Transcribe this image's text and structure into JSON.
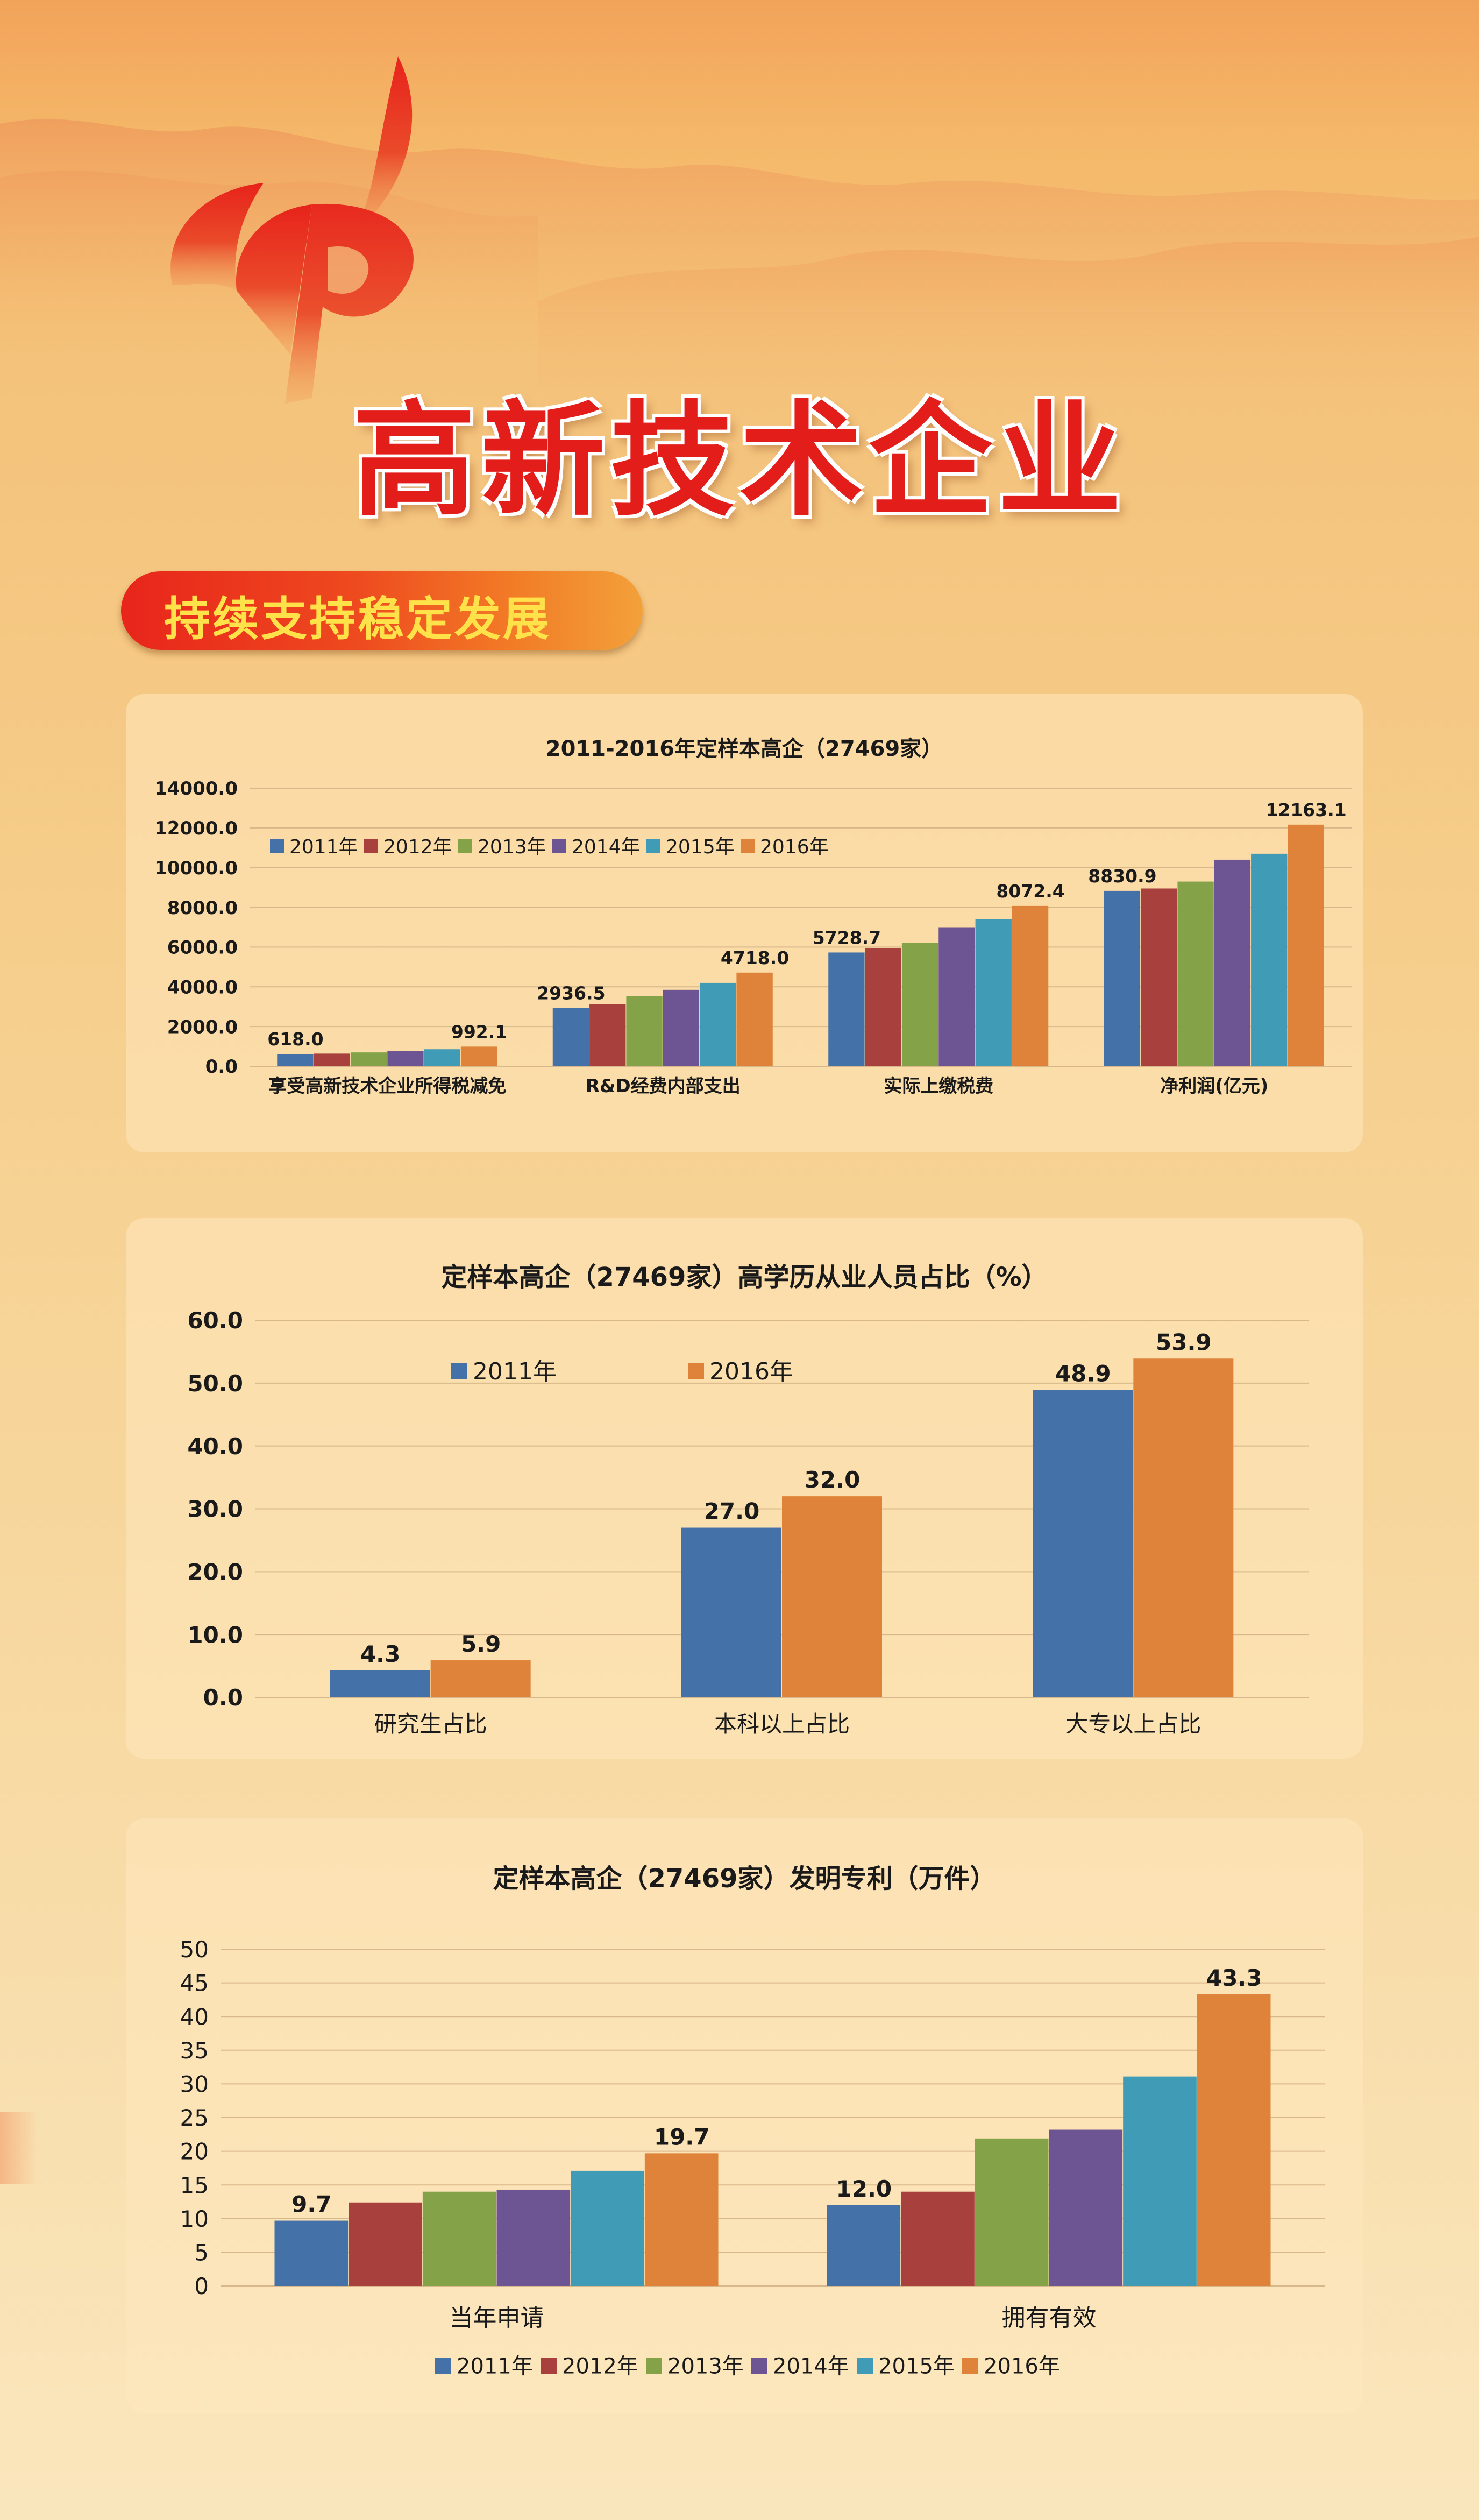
{
  "page": {
    "title": "高新技术企业",
    "section": "持续支持稳定发展"
  },
  "colors": {
    "2011": "#4472a8",
    "2012": "#a8403d",
    "2013": "#84a348",
    "2014": "#6c5592",
    "2015": "#3f9bb6",
    "2016": "#de8339",
    "title_red": "#e31d1a"
  },
  "chart_data": [
    {
      "type": "bar",
      "title": "2011-2016年定样本高企（27469家）",
      "categories": [
        "享受高新技术企业所得税减免",
        "R&D经费内部支出",
        "实际上缴税费",
        "净利润(亿元)"
      ],
      "ylim": [
        0,
        14000
      ],
      "yticks": [
        "0.0",
        "2000.0",
        "4000.0",
        "6000.0",
        "8000.0",
        "10000.0",
        "12000.0",
        "14000.0"
      ],
      "legend_position": "top-left",
      "grid": true,
      "series": [
        {
          "name": "2011年",
          "color": "#4472a8",
          "values": [
            618.0,
            2936.5,
            5728.7,
            8830.9
          ]
        },
        {
          "name": "2012年",
          "color": "#a8403d",
          "values": [
            640,
            3120,
            5950,
            8950
          ]
        },
        {
          "name": "2013年",
          "color": "#84a348",
          "values": [
            700,
            3530,
            6210,
            9300
          ]
        },
        {
          "name": "2014年",
          "color": "#6c5592",
          "values": [
            770,
            3850,
            7000,
            10400
          ]
        },
        {
          "name": "2015年",
          "color": "#3f9bb6",
          "values": [
            860,
            4200,
            7400,
            10700
          ]
        },
        {
          "name": "2016年",
          "color": "#de8339",
          "values": [
            992.1,
            4718.0,
            8072.4,
            12163.1
          ]
        }
      ],
      "data_labels": [
        {
          "series": 0,
          "category": 0,
          "text": "618.0"
        },
        {
          "series": 5,
          "category": 0,
          "text": "992.1"
        },
        {
          "series": 0,
          "category": 1,
          "text": "2936.5"
        },
        {
          "series": 5,
          "category": 1,
          "text": "4718.0"
        },
        {
          "series": 0,
          "category": 2,
          "text": "5728.7"
        },
        {
          "series": 5,
          "category": 2,
          "text": "8072.4"
        },
        {
          "series": 0,
          "category": 3,
          "text": "8830.9"
        },
        {
          "series": 5,
          "category": 3,
          "text": "12163.1"
        }
      ]
    },
    {
      "type": "bar",
      "title": "定样本高企（27469家）高学历从业人员占比（%）",
      "categories": [
        "研究生占比",
        "本科以上占比",
        "大专以上占比"
      ],
      "ylim": [
        0,
        60
      ],
      "yticks": [
        "0.0",
        "10.0",
        "20.0",
        "30.0",
        "40.0",
        "50.0",
        "60.0"
      ],
      "legend_position": "top",
      "grid": true,
      "series": [
        {
          "name": "2011年",
          "color": "#4472a8",
          "values": [
            4.3,
            27.0,
            48.9
          ]
        },
        {
          "name": "2016年",
          "color": "#de8339",
          "values": [
            5.9,
            32.0,
            53.9
          ]
        }
      ],
      "data_labels": [
        {
          "series": 0,
          "category": 0,
          "text": "4.3"
        },
        {
          "series": 1,
          "category": 0,
          "text": "5.9"
        },
        {
          "series": 0,
          "category": 1,
          "text": "27.0"
        },
        {
          "series": 1,
          "category": 1,
          "text": "32.0"
        },
        {
          "series": 0,
          "category": 2,
          "text": "48.9"
        },
        {
          "series": 1,
          "category": 2,
          "text": "53.9"
        }
      ]
    },
    {
      "type": "bar",
      "title": "定样本高企（27469家）发明专利（万件）",
      "categories": [
        "当年申请",
        "拥有有效"
      ],
      "ylim": [
        0,
        50
      ],
      "yticks": [
        "0",
        "5",
        "10",
        "15",
        "20",
        "25",
        "30",
        "35",
        "40",
        "45",
        "50"
      ],
      "legend_position": "bottom",
      "grid": true,
      "series": [
        {
          "name": "2011年",
          "color": "#4472a8",
          "values": [
            9.7,
            12.0
          ]
        },
        {
          "name": "2012年",
          "color": "#a8403d",
          "values": [
            12.4,
            14.0
          ]
        },
        {
          "name": "2013年",
          "color": "#84a348",
          "values": [
            14.0,
            21.9
          ]
        },
        {
          "name": "2014年",
          "color": "#6c5592",
          "values": [
            14.3,
            23.2
          ]
        },
        {
          "name": "2015年",
          "color": "#3f9bb6",
          "values": [
            17.1,
            31.1
          ]
        },
        {
          "name": "2016年",
          "color": "#de8339",
          "values": [
            19.7,
            43.3
          ]
        }
      ],
      "data_labels": [
        {
          "series": 0,
          "category": 0,
          "text": "9.7"
        },
        {
          "series": 5,
          "category": 0,
          "text": "19.7"
        },
        {
          "series": 0,
          "category": 1,
          "text": "12.0"
        },
        {
          "series": 5,
          "category": 1,
          "text": "43.3"
        }
      ]
    }
  ]
}
